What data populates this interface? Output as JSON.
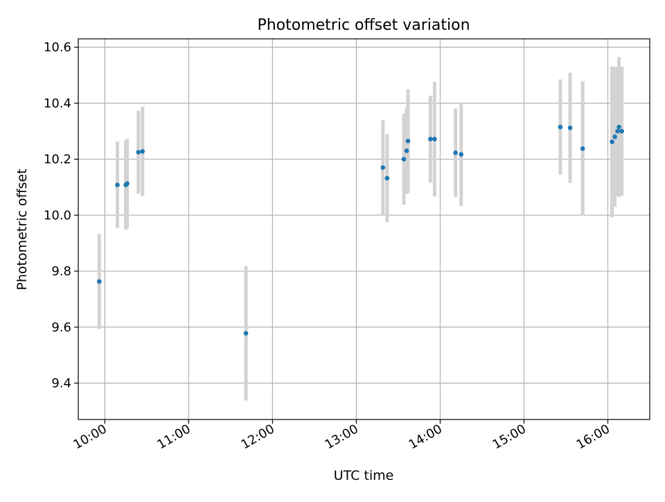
{
  "chart_data": {
    "type": "scatter",
    "title": "Photometric offset variation",
    "xlabel": "UTC time",
    "ylabel": "Photometric offset",
    "x_ticks": [
      "10:00",
      "11:00",
      "12:00",
      "13:00",
      "14:00",
      "15:00",
      "16:00"
    ],
    "y_ticks": [
      "9.4",
      "9.6",
      "9.8",
      "10.0",
      "10.2",
      "10.4",
      "10.6"
    ],
    "xlim": [
      "09:41",
      "16:30"
    ],
    "ylim": [
      9.27,
      10.63
    ],
    "grid": true,
    "marker_color": "#1f77b4",
    "errorbar_color": "#d3d3d3",
    "series": [
      {
        "points": [
          {
            "x": "09:56",
            "y": 9.763,
            "err": 0.17
          },
          {
            "x": "10:09",
            "y": 10.108,
            "err": 0.155
          },
          {
            "x": "10:15",
            "y": 10.108,
            "err": 0.16
          },
          {
            "x": "10:16",
            "y": 10.113,
            "err": 0.16
          },
          {
            "x": "10:24",
            "y": 10.225,
            "err": 0.148
          },
          {
            "x": "10:27",
            "y": 10.228,
            "err": 0.16
          },
          {
            "x": "11:41",
            "y": 9.578,
            "err": 0.24
          },
          {
            "x": "13:19",
            "y": 10.17,
            "err": 0.17
          },
          {
            "x": "13:22",
            "y": 10.132,
            "err": 0.158
          },
          {
            "x": "13:34",
            "y": 10.2,
            "err": 0.162
          },
          {
            "x": "13:36",
            "y": 10.23,
            "err": 0.155
          },
          {
            "x": "13:37",
            "y": 10.265,
            "err": 0.185
          },
          {
            "x": "13:53",
            "y": 10.272,
            "err": 0.155
          },
          {
            "x": "13:56",
            "y": 10.272,
            "err": 0.205
          },
          {
            "x": "14:11",
            "y": 10.223,
            "err": 0.158
          },
          {
            "x": "14:15",
            "y": 10.217,
            "err": 0.185
          },
          {
            "x": "15:26",
            "y": 10.315,
            "err": 0.17
          },
          {
            "x": "15:33",
            "y": 10.312,
            "err": 0.197
          },
          {
            "x": "15:42",
            "y": 10.238,
            "err": 0.24
          },
          {
            "x": "16:03",
            "y": 10.262,
            "err": 0.27
          },
          {
            "x": "16:05",
            "y": 10.28,
            "err": 0.25
          },
          {
            "x": "16:07",
            "y": 10.3,
            "err": 0.23
          },
          {
            "x": "16:08",
            "y": 10.315,
            "err": 0.25
          },
          {
            "x": "16:10",
            "y": 10.3,
            "err": 0.23
          }
        ]
      }
    ]
  }
}
